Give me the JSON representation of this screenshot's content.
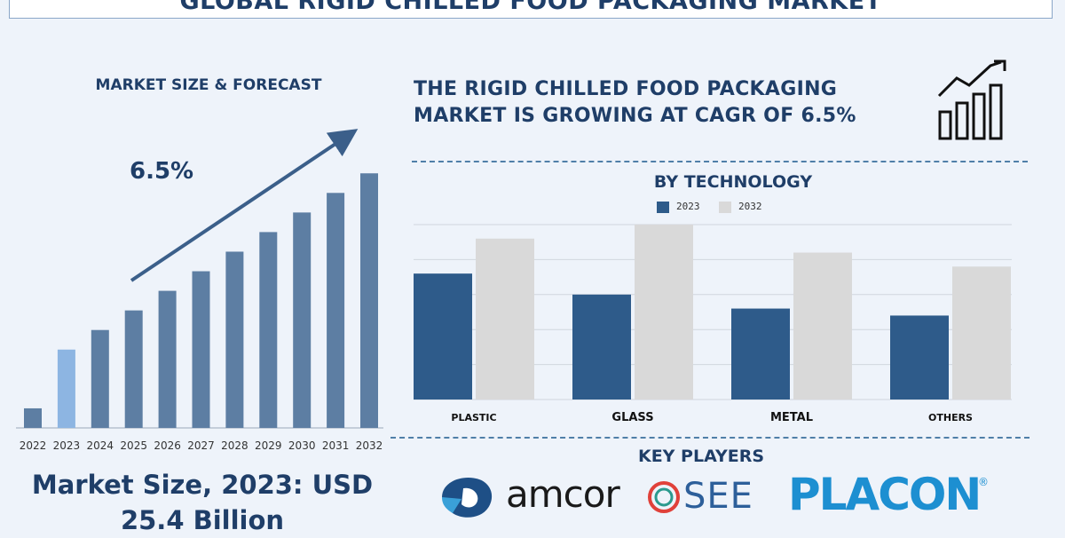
{
  "header": {
    "title": "GLOBAL RIGID CHILLED FOOD PACKAGING MARKET"
  },
  "left_panel": {
    "title": "MARKET SIZE & FORECAST",
    "cagr_label": "6.5%",
    "market_size_line1": "Market Size, 2023: USD",
    "market_size_line2": "25.4 Billion"
  },
  "headline": {
    "line1": "THE RIGID CHILLED FOOD PACKAGING",
    "line2": "MARKET IS GROWING AT CAGR OF 6.5%"
  },
  "technology_section": {
    "title": "BY TECHNOLOGY"
  },
  "key_players": {
    "title": "KEY PLAYERS",
    "logos": [
      "amcor",
      "SEE",
      "PLACON"
    ]
  },
  "colors": {
    "dark_blue": "#1f3e68",
    "bar_blue": "#5d7ea3",
    "bar_highlight": "#8db5e2",
    "series_2023": "#2e5b8a",
    "series_2032": "#d9d9d9"
  },
  "chart_data": [
    {
      "type": "bar",
      "title": "MARKET SIZE & FORECAST",
      "categories": [
        "2022",
        "2023",
        "2024",
        "2025",
        "2026",
        "2027",
        "2028",
        "2029",
        "2030",
        "2031",
        "2032"
      ],
      "values": [
        2.5,
        10,
        12.5,
        15,
        17.5,
        20,
        22.5,
        25,
        27.5,
        30,
        32.5
      ],
      "annotation": "6.5%",
      "ylim": [
        0,
        34
      ]
    },
    {
      "type": "bar",
      "title": "BY TECHNOLOGY",
      "categories": [
        "PLASTIC",
        "GLASS",
        "METAL",
        "OTHERS"
      ],
      "series": [
        {
          "name": "2023",
          "values": [
            36,
            30,
            26,
            24
          ]
        },
        {
          "name": "2032",
          "values": [
            46,
            50,
            42,
            38
          ]
        }
      ],
      "ylim": [
        0,
        50
      ],
      "grid": true,
      "legend": "top-center"
    }
  ]
}
